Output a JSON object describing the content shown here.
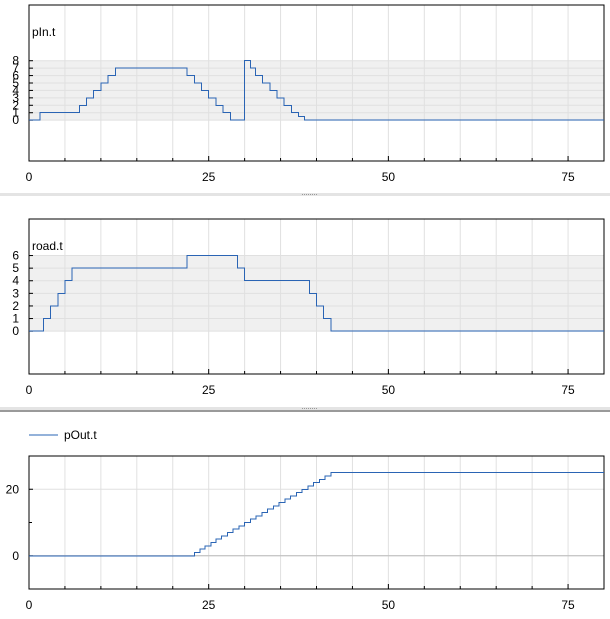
{
  "colors": {
    "series": "#2a64b4",
    "grid": "#e0e0e0",
    "band": "#f0f0f0",
    "axis": "#000000",
    "separator": "#e4e4e4",
    "separator_dark": "#9a9a9a",
    "zero_line": "#bcbcbc"
  },
  "chart_data": [
    {
      "type": "line",
      "step": true,
      "series": [
        {
          "name": "pIn.t",
          "x": [
            0,
            1.5,
            7,
            8,
            9,
            10,
            11,
            12,
            22,
            23,
            24,
            25,
            26,
            27,
            28,
            30,
            30.8,
            31.5,
            32.5,
            33.5,
            34.5,
            35.5,
            36.5,
            37.5,
            38.3,
            80
          ],
          "values": [
            0,
            1,
            2,
            3,
            4,
            5,
            6,
            7,
            6,
            5,
            4,
            3,
            2,
            1,
            0,
            8,
            7,
            6,
            5,
            4,
            3,
            2,
            1,
            0.5,
            0,
            0
          ]
        }
      ],
      "xlim": [
        0,
        80
      ],
      "ylim": [
        -5.5,
        15.5
      ],
      "band": [
        0,
        8
      ],
      "yticks": [
        0,
        1,
        2,
        3,
        4,
        5,
        6,
        7,
        8
      ],
      "ytick_labels": [
        "0",
        "1",
        "2",
        "3",
        "4",
        "5",
        "6",
        "7",
        "8"
      ],
      "xticks": [
        0,
        25,
        50,
        75
      ],
      "xtick_labels": [
        "0",
        "25",
        "50",
        "75"
      ],
      "legend": "top-left",
      "grid": true
    },
    {
      "type": "line",
      "step": true,
      "series": [
        {
          "name": "road.t",
          "x": [
            0,
            2,
            3,
            4,
            5,
            6,
            22,
            29,
            30,
            39,
            40,
            41,
            42,
            80
          ],
          "values": [
            0,
            1,
            2,
            3,
            4,
            5,
            6,
            5,
            4,
            3,
            2,
            1,
            0,
            0
          ]
        }
      ],
      "xlim": [
        0,
        80
      ],
      "ylim": [
        -3.4,
        8.9
      ],
      "band": [
        0,
        6
      ],
      "yticks": [
        0,
        1,
        2,
        3,
        4,
        5,
        6
      ],
      "ytick_labels": [
        "0",
        "1",
        "2",
        "3",
        "4",
        "5",
        "6"
      ],
      "xticks": [
        0,
        25,
        50,
        75
      ],
      "xtick_labels": [
        "0",
        "25",
        "50",
        "75"
      ],
      "legend": "top-left",
      "grid": true
    },
    {
      "type": "line",
      "step": true,
      "series": [
        {
          "name": "pOut.t",
          "x": [
            0,
            23,
            23.8,
            24.5,
            25.3,
            26,
            26.8,
            27.6,
            28.4,
            29.2,
            30,
            30.8,
            31.6,
            32.4,
            33.2,
            34,
            34.8,
            35.6,
            36.4,
            37.2,
            38,
            38.8,
            39.6,
            40.4,
            41.2,
            42,
            80
          ],
          "values": [
            0,
            1,
            2,
            3,
            4,
            5,
            6,
            7,
            8,
            9,
            10,
            11,
            12,
            13,
            14,
            15,
            16,
            17,
            18,
            19,
            20,
            21,
            22,
            23,
            24,
            25,
            25
          ]
        }
      ],
      "xlim": [
        0,
        80
      ],
      "ylim": [
        -10,
        30
      ],
      "yticks": [
        0,
        20
      ],
      "ytick_labels": [
        "0",
        "20"
      ],
      "xticks": [
        0,
        25,
        50,
        75
      ],
      "xtick_labels": [
        "0",
        "25",
        "50",
        "75"
      ],
      "legend": "top-left",
      "grid": true
    }
  ]
}
